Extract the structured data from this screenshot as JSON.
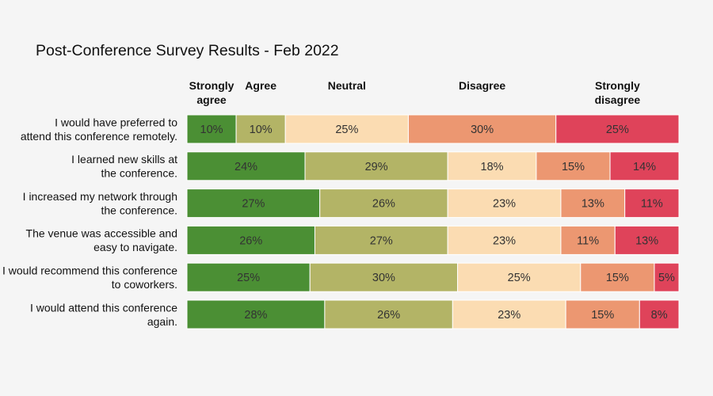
{
  "chart_data": {
    "type": "bar",
    "orientation": "horizontal",
    "stacked": true,
    "title": "Post-Conference Survey Results - Feb 2022",
    "xlabel": "",
    "ylabel": "",
    "value_format": "percent",
    "grid": false,
    "legend_position": "top",
    "categories": [
      [
        "I would have preferred to",
        "attend this conference remotely."
      ],
      [
        "I learned new skills at",
        "the conference."
      ],
      [
        "I increased my network through",
        "the conference."
      ],
      [
        "The venue was accessible and",
        "easy to navigate."
      ],
      [
        "I would recommend this conference",
        "to coworkers."
      ],
      [
        "I would attend this conference",
        "again."
      ]
    ],
    "series": [
      {
        "name": [
          "Strongly",
          "agree"
        ],
        "color": "#4b8f34",
        "values": [
          10,
          24,
          27,
          26,
          25,
          28
        ],
        "labels": [
          "10%",
          "24%",
          "27%",
          "26%",
          "25%",
          "28%"
        ]
      },
      {
        "name": [
          "Agree"
        ],
        "color": "#b3b466",
        "values": [
          10,
          29,
          26,
          27,
          30,
          26
        ],
        "labels": [
          "10%",
          "29%",
          "26%",
          "27%",
          "30%",
          "26%"
        ]
      },
      {
        "name": [
          "Neutral"
        ],
        "color": "#fbdcb2",
        "values": [
          25,
          18,
          23,
          23,
          25,
          23
        ],
        "labels": [
          "25%",
          "18%",
          "23%",
          "23%",
          "25%",
          "23%"
        ]
      },
      {
        "name": [
          "Disagree"
        ],
        "color": "#ec9771",
        "values": [
          30,
          15,
          13,
          11,
          15,
          15
        ],
        "labels": [
          "30%",
          "15%",
          "13%",
          "11%",
          "15%",
          "15%"
        ]
      },
      {
        "name": [
          "Strongly",
          "disagree"
        ],
        "color": "#df435a",
        "values": [
          25,
          14,
          11,
          13,
          5,
          8
        ],
        "labels": [
          "25%",
          "14%",
          "11%",
          "13%",
          "5%",
          "8%"
        ]
      }
    ]
  }
}
